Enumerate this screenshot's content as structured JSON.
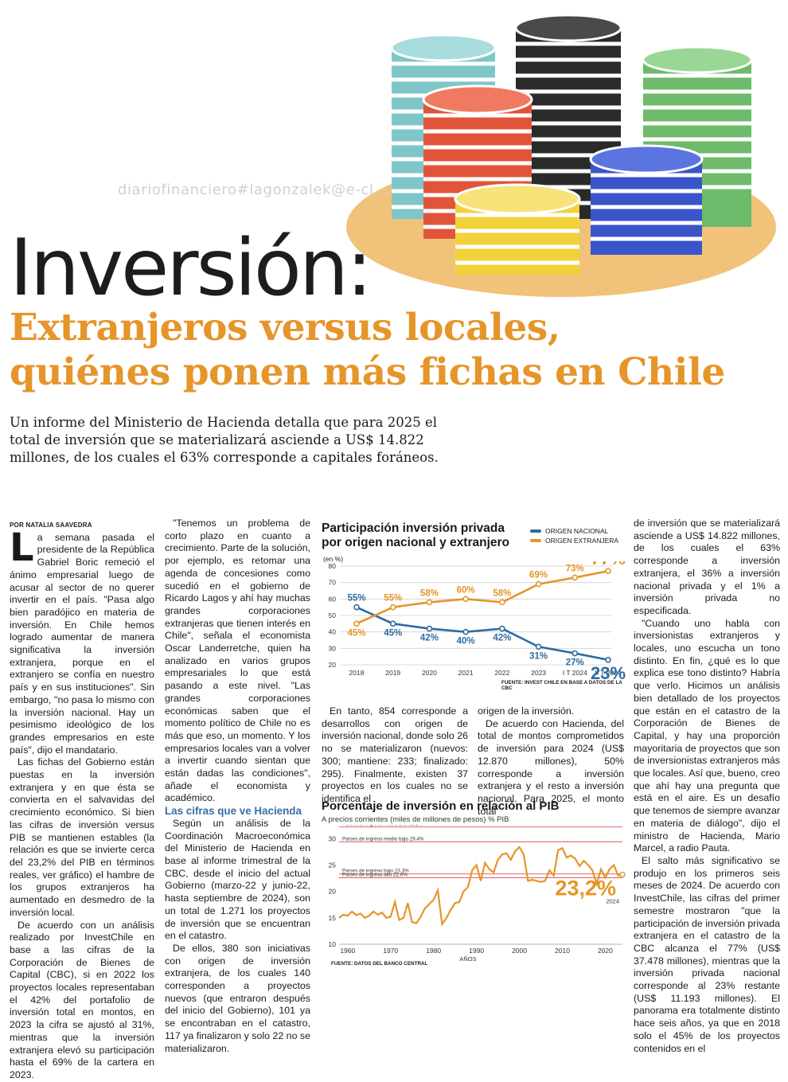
{
  "watermark": "diariofinanciero#lagonzalek@e-cl...",
  "kicker": "Inversión:",
  "title_lines": [
    "Extranjeros versus locales,",
    "quiénes ponen más fichas en Chile"
  ],
  "lede": "Un informe del Ministerio de Hacienda detalla que para 2025 el total de inversión que se materializará asciende a US$ 14.822 millones, de los cuales el 63% corresponde a capitales foráneos.",
  "col1": {
    "byline": "POR NATALIA SAAVEDRA",
    "dropcap": "L",
    "p1": "a semana pasada el presidente de la República Gabriel Boric remeció el ánimo empresarial luego de acusar al sector de no querer invertir en el país. \"Pasa algo bien paradójico en materia de inversión. En Chile hemos logrado aumentar de manera significativa la inversión extranjera, porque en el extranjero se confía en nuestro país y en sus instituciones\". Sin embargo, \"no pasa lo mismo con la inversión nacional. Hay un pesimismo ideológico de los grandes empresarios en este país\", dijo el mandatario.",
    "p2": "Las fichas del Gobierno están puestas en la inversión extranjera y en que ésta se convierta en el salvavidas del crecimiento económico. Si bien las cifras de inversión versus PIB se mantienen estables (la relación es que se invierte cerca del 23,2% del PIB en términos reales, ver gráfico) el hambre de los grupos extranjeros ha aumentado en desmedro de la inversión local.",
    "p3": "De acuerdo con un análisis realizado por InvestChile en base a las cifras de la Corporación de Bienes de Capital (CBC), si en 2022 los proyectos locales representaban el 42% del portafolio de inversión total en montos, en 2023 la cifra se ajustó al 31%, mientras que la inversión extranjera elevó su participación hasta el 69% de la cartera en 2023."
  },
  "col2": {
    "p1": "\"Tenemos un problema de corto plazo en cuanto a crecimiento. Parte de la solución, por ejemplo, es retomar una agenda de concesiones como sucedió en el gobierno de Ricardo Lagos y ahí hay muchas grandes corporaciones extranjeras que tienen interés en Chile\", señala el economista Oscar Landerretche, quien ha analizado en varios grupos empresariales lo que está pasando a este nivel. \"Las grandes corporaciones económicas saben que el momento político de Chile no es más que eso, un momento. Y los empresarios locales van a volver a invertir cuando sientan que están dadas las condiciones\", añade el economista y académico.",
    "subhead": "Las cifras que ve Hacienda",
    "p2": "Según un análisis de la Coordinación Macroeconómica del Ministerio de Hacienda en base al informe trimestral de la CBC, desde el inicio del actual Gobierno (marzo-22 y junio-22, hasta septiembre de 2024), son un total de 1.271 los proyectos de inversión que se encuentran en el catastro.",
    "p3": "De ellos, 380 son iniciativas con origen de inversión extranjera, de los cuales 140 corresponden a proyectos nuevos (que entraron después del inicio del Gobierno), 101 ya se encontraban en el catastro, 117 ya finalizaron y solo 22 no se materializaron."
  },
  "col3a": {
    "p1": "En tanto, 854 corresponde a desarrollos con origen de inversión nacional, donde solo 26 no se materializaron (nuevos: 300; mantiene: 233; finalizado: 295). Finalmente, existen 37 proyectos en los cuales no se identifica el"
  },
  "col3b": {
    "p1": "origen de la inversión.",
    "p2": "De acuerdo con Hacienda, del total de montos comprometidos de inversión para 2024 (US$ 12.870 millones), 50% corresponde a inversión extranjera y el resto a inversión nacional. Para 2025, el monto total"
  },
  "col4": {
    "p1": "de inversión que se materializará asciende a US$ 14.822 millones, de los cuales el 63% corresponde a inversión extranjera, el 36% a inversión nacional privada y el 1% a inversión privada no especificada.",
    "p2": "\"Cuando uno habla con inversionistas extranjeros y locales, uno escucha un tono distinto. En fin, ¿qué es lo que explica ese tono distinto? Habría que verlo. Hicimos un análisis bien detallado de los proyectos que están en el catastro de la Corporación de Bienes de Capital, y hay una proporción mayoritaria de proyectos que son de inversionistas extranjeros más que locales. Así que, bueno, creo que ahí hay una pregunta que está en el aire. Es un desafío que tenemos de siempre avanzar en materia de diálogo\", dijo el ministro de Hacienda, Mario Marcel, a radio Pauta.",
    "p3": "El salto más significativo se produjo en los primeros seis meses de 2024. De acuerdo con InvestChile, las cifras del primer semestre mostraron \"que la participación de inversión privada extranjera en el catastro de la CBC alcanza el 77% (US$ 37.478 millones), mientras que la inversión privada nacional corresponde al 23% restante (US$ 11.193 millones). El panorama era totalmente distinto hace seis años, ya que en 2018 solo el 45% de los proyectos contenidos en el"
  },
  "chart1": {
    "title": "Participación inversión privada\npor origen nacional y extranjero",
    "unit": "(en %)",
    "source": "FUENTE: INVEST CHILE EN BASE A DATOS DE LA CBC",
    "colors": {
      "nacional": "#2f6aa3",
      "extranjera": "#e6952a"
    }
  },
  "chart2": {
    "title": "Porcentaje de inversión en relación al PIB",
    "subtitle": "A precios corrientes (miles de millones de pesos)  % PIB",
    "source": "FUENTE: DATOS DEL BANCO CENTRAL",
    "xlabel": "AÑOS"
  },
  "chart_data": [
    {
      "type": "line",
      "title": "Participación inversión privada por origen nacional y extranjero",
      "ylabel": "(en %)",
      "categories": [
        "2018",
        "2019",
        "2020",
        "2021",
        "2022",
        "2023",
        "I T 2024",
        "II T 2024"
      ],
      "ylim": [
        20,
        80
      ],
      "yticks": [
        20,
        30,
        40,
        50,
        60,
        70,
        80
      ],
      "grid": true,
      "legend": "top-right",
      "series": [
        {
          "name": "ORIGEN NACIONAL",
          "color": "#2f6aa3",
          "values": [
            55,
            45,
            42,
            40,
            42,
            31,
            27,
            23
          ],
          "labels": [
            "55%",
            "45%",
            "42%",
            "40%",
            "42%",
            "31%",
            "27%",
            "23%"
          ]
        },
        {
          "name": "ORIGEN EXTRANJERA",
          "color": "#e6952a",
          "values": [
            45,
            55,
            58,
            60,
            58,
            69,
            73,
            77
          ],
          "labels": [
            "45%",
            "55%",
            "58%",
            "60%",
            "58%",
            "69%",
            "73%",
            "77%"
          ]
        }
      ]
    },
    {
      "type": "line",
      "title": "Porcentaje de inversión en relación al PIB",
      "xlabel": "AÑOS",
      "ylabel": "% PIB",
      "xlim": [
        1958,
        2024
      ],
      "ylim": [
        10,
        32
      ],
      "yticks": [
        10,
        15,
        20,
        25,
        30
      ],
      "xticks": [
        1960,
        1970,
        1980,
        1990,
        2000,
        2010,
        2020
      ],
      "grid": false,
      "reference_lines": [
        {
          "label": "Países de ingreso medio alto 32.2%",
          "value": 32.2
        },
        {
          "label": "Países de ingreso medio bajo 29.4%",
          "value": 29.4
        },
        {
          "label": "Países de ingreso bajo 23.3%",
          "value": 23.3
        },
        {
          "label": "Países de ingreso alto 22.6%",
          "value": 22.6
        }
      ],
      "series": [
        {
          "name": "% PIB",
          "color": "#e6952a",
          "x": [
            1958,
            1959,
            1960,
            1961,
            1962,
            1963,
            1964,
            1965,
            1966,
            1967,
            1968,
            1969,
            1970,
            1971,
            1972,
            1973,
            1974,
            1975,
            1976,
            1977,
            1978,
            1979,
            1980,
            1981,
            1982,
            1983,
            1984,
            1985,
            1986,
            1987,
            1988,
            1989,
            1990,
            1991,
            1992,
            1993,
            1994,
            1995,
            1996,
            1997,
            1998,
            1999,
            2000,
            2001,
            2002,
            2003,
            2004,
            2005,
            2006,
            2007,
            2008,
            2009,
            2010,
            2011,
            2012,
            2013,
            2014,
            2015,
            2016,
            2017,
            2018,
            2019,
            2020,
            2021,
            2022,
            2023,
            2024
          ],
          "values": [
            15.0,
            15.6,
            15.4,
            16.2,
            15.5,
            15.8,
            15.0,
            15.4,
            16.2,
            15.6,
            16.0,
            15.0,
            15.2,
            18.0,
            14.6,
            15.0,
            17.8,
            14.2,
            14.0,
            15.2,
            16.8,
            17.6,
            18.4,
            20.2,
            13.8,
            15.0,
            16.5,
            17.8,
            18.0,
            20.0,
            20.8,
            24.0,
            25.0,
            22.0,
            25.4,
            24.2,
            23.6,
            26.0,
            27.0,
            27.2,
            26.0,
            27.6,
            28.4,
            27.0,
            22.0,
            22.2,
            22.0,
            21.8,
            22.0,
            24.0,
            23.0,
            27.8,
            28.2,
            26.4,
            26.8,
            26.2,
            24.8,
            25.8,
            25.0,
            24.0,
            21.4,
            24.2,
            22.6,
            24.2,
            25.0,
            23.0,
            23.2
          ],
          "end_label": "23,2%",
          "end_year_label": "2024"
        }
      ]
    }
  ]
}
